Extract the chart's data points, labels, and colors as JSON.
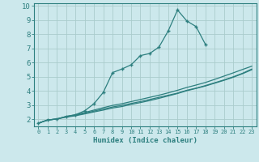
{
  "bg_color": "#cce8ec",
  "grid_color": "#aacccc",
  "line_color": "#2d7f7f",
  "xlabel": "Humidex (Indice chaleur)",
  "xlim": [
    -0.5,
    23.5
  ],
  "ylim": [
    1.5,
    10.2
  ],
  "yticks": [
    2,
    3,
    4,
    5,
    6,
    7,
    8,
    9,
    10
  ],
  "xticks": [
    0,
    1,
    2,
    3,
    4,
    5,
    6,
    7,
    8,
    9,
    10,
    11,
    12,
    13,
    14,
    15,
    16,
    17,
    18,
    19,
    20,
    21,
    22,
    23
  ],
  "line1_x": [
    0,
    1,
    2,
    3,
    4,
    5,
    6,
    7,
    8,
    9,
    10,
    11,
    12,
    13,
    14,
    15,
    16,
    17,
    18,
    19,
    20,
    21,
    22,
    23
  ],
  "line1_y": [
    1.72,
    1.95,
    2.02,
    2.18,
    2.28,
    2.42,
    2.58,
    2.72,
    2.87,
    2.98,
    3.12,
    3.25,
    3.4,
    3.55,
    3.7,
    3.85,
    4.05,
    4.2,
    4.38,
    4.58,
    4.78,
    5.0,
    5.25,
    5.55
  ],
  "line2_x": [
    0,
    1,
    2,
    3,
    4,
    5,
    6,
    7,
    8,
    9,
    10,
    11,
    12,
    13,
    14,
    15,
    16,
    17,
    18,
    19,
    20,
    21,
    22,
    23
  ],
  "line2_y": [
    1.72,
    1.95,
    2.02,
    2.2,
    2.32,
    2.48,
    2.65,
    2.82,
    2.98,
    3.1,
    3.25,
    3.4,
    3.55,
    3.7,
    3.87,
    4.05,
    4.25,
    4.42,
    4.6,
    4.82,
    5.05,
    5.28,
    5.52,
    5.75
  ],
  "line3_x": [
    0,
    1,
    2,
    3,
    4,
    5,
    6,
    7,
    8,
    9,
    10,
    11,
    12,
    13,
    14,
    15,
    16,
    17,
    18,
    19,
    20,
    21,
    22,
    23
  ],
  "line3_y": [
    1.72,
    1.95,
    2.02,
    2.15,
    2.25,
    2.38,
    2.52,
    2.65,
    2.8,
    2.9,
    3.05,
    3.18,
    3.32,
    3.48,
    3.65,
    3.82,
    4.02,
    4.18,
    4.35,
    4.55,
    4.75,
    4.97,
    5.22,
    5.5
  ],
  "line4_x": [
    0,
    1,
    2,
    3,
    4,
    5,
    6,
    7,
    8,
    9,
    10,
    11,
    12,
    13,
    14,
    15,
    16,
    17,
    18
  ],
  "line4_y": [
    1.72,
    1.95,
    2.02,
    2.2,
    2.32,
    2.6,
    3.1,
    3.9,
    5.3,
    5.55,
    5.85,
    6.5,
    6.65,
    7.1,
    8.25,
    9.72,
    8.95,
    8.55,
    7.3
  ]
}
